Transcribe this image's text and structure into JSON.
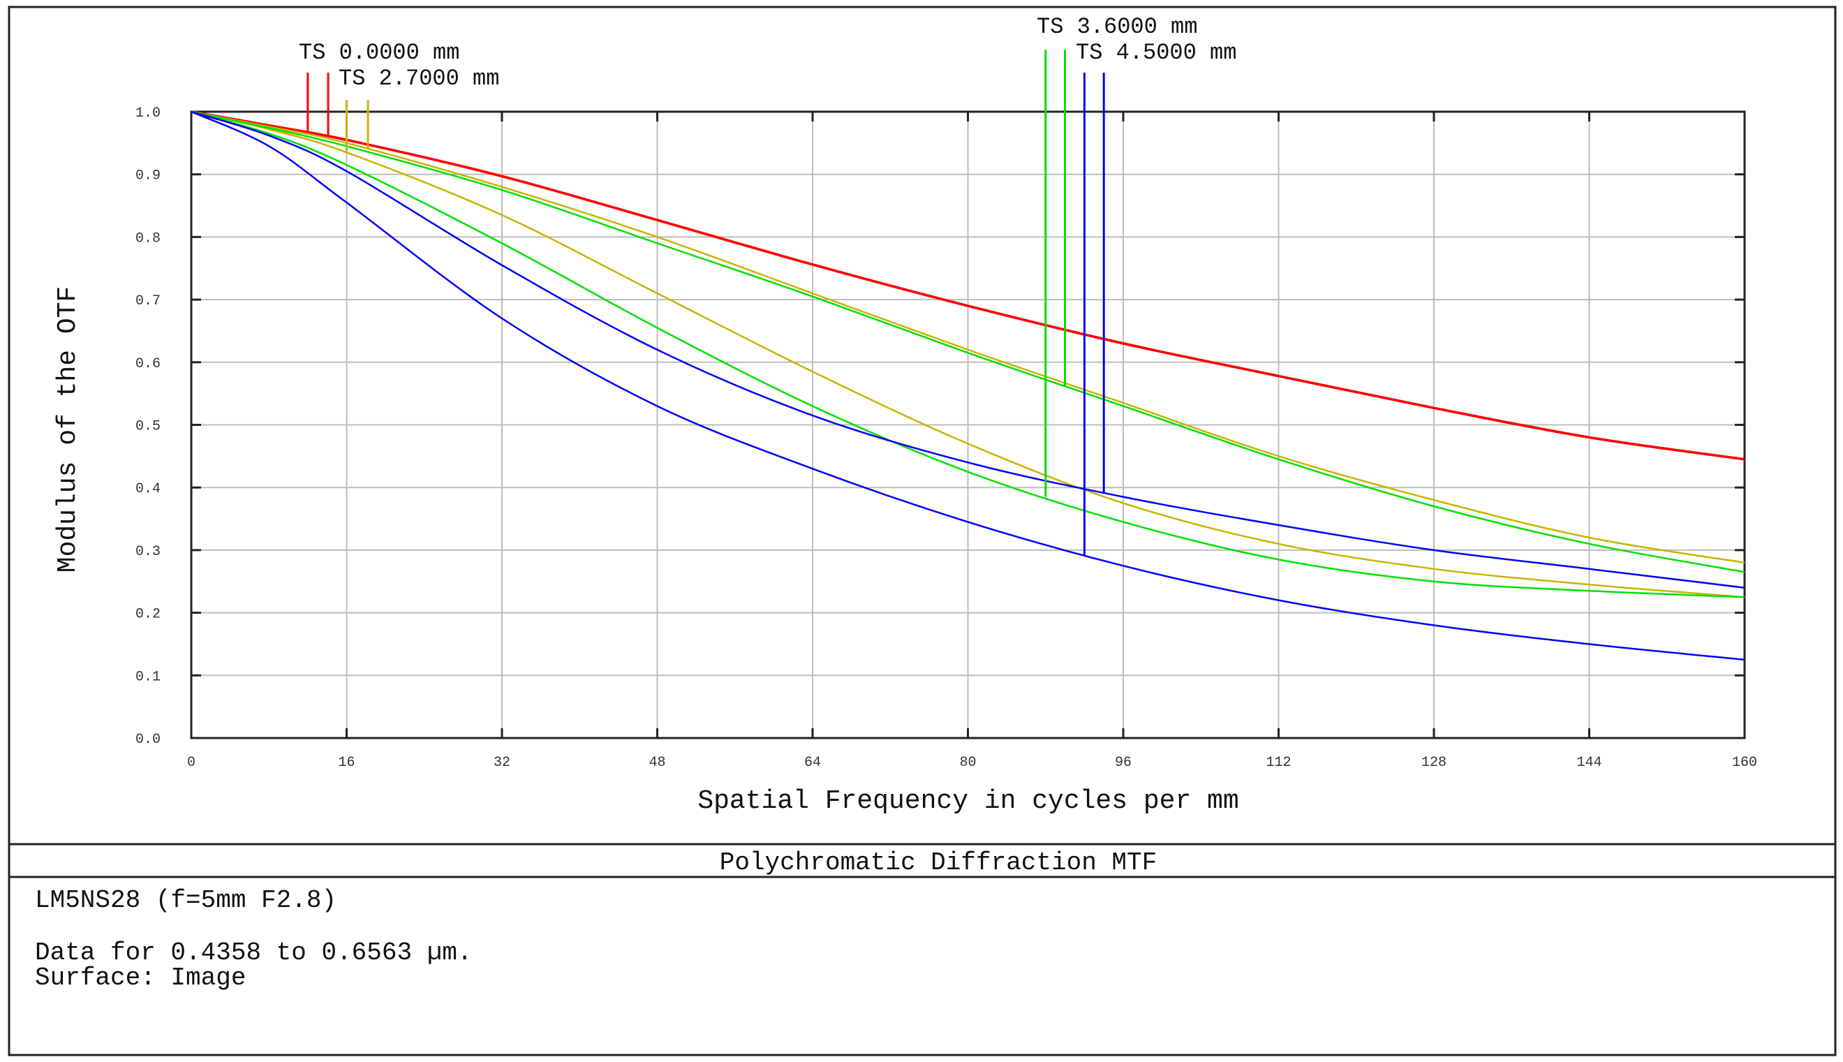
{
  "chart_data": {
    "type": "line",
    "title": "Polychromatic Diffraction MTF",
    "xlabel": "Spatial Frequency in cycles per mm",
    "ylabel": "Modulus of the OTF",
    "xlim": [
      0,
      160
    ],
    "ylim": [
      0,
      1.0
    ],
    "xticks": [
      "0",
      "16",
      "32",
      "48",
      "64",
      "80",
      "96",
      "112",
      "128",
      "144",
      "160"
    ],
    "yticks": [
      "0.0",
      "0.1",
      "0.2",
      "0.3",
      "0.4",
      "0.5",
      "0.6",
      "0.7",
      "0.8",
      "0.9",
      "1.0"
    ],
    "grid": true,
    "x": [
      0,
      8,
      16,
      32,
      48,
      64,
      80,
      96,
      112,
      128,
      144,
      160
    ],
    "series": [
      {
        "field": "TS 0.0000 mm",
        "type": "T",
        "color": "#ff0000",
        "values": [
          1.0,
          0.978,
          0.955,
          0.897,
          0.827,
          0.756,
          0.69,
          0.63,
          0.578,
          0.527,
          0.48,
          0.445
        ]
      },
      {
        "field": "TS 0.0000 mm",
        "type": "S",
        "color": "#ff0000",
        "values": [
          1.0,
          0.978,
          0.955,
          0.897,
          0.827,
          0.756,
          0.69,
          0.63,
          0.578,
          0.527,
          0.48,
          0.445
        ]
      },
      {
        "field": "TS 2.7000 mm",
        "type": "T",
        "color": "#c8b400",
        "values": [
          1.0,
          0.972,
          0.935,
          0.835,
          0.71,
          0.585,
          0.47,
          0.375,
          0.31,
          0.27,
          0.245,
          0.225
        ]
      },
      {
        "field": "TS 2.7000 mm",
        "type": "S",
        "color": "#c8b400",
        "values": [
          1.0,
          0.976,
          0.95,
          0.88,
          0.8,
          0.71,
          0.62,
          0.535,
          0.45,
          0.38,
          0.32,
          0.28
        ]
      },
      {
        "field": "TS 3.6000 mm",
        "type": "T",
        "color": "#00e000",
        "values": [
          1.0,
          0.965,
          0.915,
          0.79,
          0.655,
          0.53,
          0.425,
          0.345,
          0.285,
          0.25,
          0.235,
          0.225
        ]
      },
      {
        "field": "TS 3.6000 mm",
        "type": "S",
        "color": "#00e000",
        "values": [
          1.0,
          0.974,
          0.945,
          0.875,
          0.79,
          0.705,
          0.615,
          0.53,
          0.445,
          0.37,
          0.31,
          0.265
        ]
      },
      {
        "field": "TS 4.5000 mm",
        "type": "T",
        "color": "#0000ff",
        "values": [
          1.0,
          0.945,
          0.855,
          0.67,
          0.53,
          0.43,
          0.345,
          0.275,
          0.22,
          0.18,
          0.15,
          0.125
        ]
      },
      {
        "field": "TS 4.5000 mm",
        "type": "S",
        "color": "#0000ff",
        "values": [
          1.0,
          0.962,
          0.905,
          0.755,
          0.62,
          0.515,
          0.44,
          0.385,
          0.34,
          0.3,
          0.27,
          0.24
        ]
      }
    ],
    "legend": [
      "TS 0.0000 mm",
      "TS 2.7000 mm",
      "TS 3.6000 mm",
      "TS 4.5000 mm"
    ]
  },
  "info": {
    "lens": "LM5NS28 (f=5mm F2.8)",
    "wavelengths": "Data for 0.4358 to 0.6563 µm.",
    "surface": "Surface: Image"
  }
}
